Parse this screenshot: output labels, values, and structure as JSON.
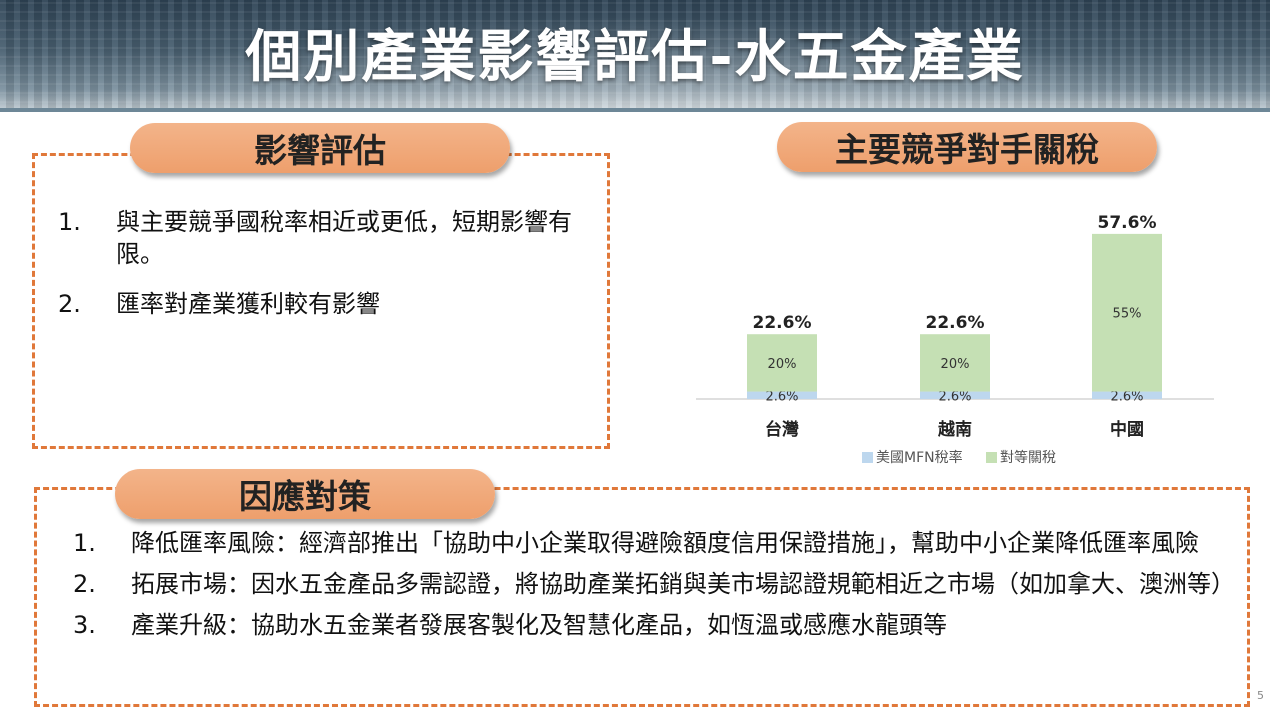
{
  "header": {
    "title": "個別產業影響評估-水五金產業"
  },
  "impact": {
    "heading": "影響評估",
    "items": [
      {
        "num": "1.",
        "text": "與主要競爭國稅率相近或更低，短期影響有限。"
      },
      {
        "num": "2.",
        "text": "匯率對產業獲利較有影響"
      }
    ]
  },
  "chart_section": {
    "heading": "主要競爭對手關稅"
  },
  "chart_data": {
    "type": "bar",
    "stacked": true,
    "categories": [
      "台灣",
      "越南",
      "中國"
    ],
    "series": [
      {
        "name": "美國MFN稅率",
        "values": [
          2.6,
          2.6,
          2.6
        ],
        "labels": [
          "2.6%",
          "2.6%",
          "2.6%"
        ],
        "color": "#bdd7ee"
      },
      {
        "name": "對等關稅",
        "values": [
          20,
          20,
          55
        ],
        "labels": [
          "20%",
          "20%",
          "55%"
        ],
        "color": "#c5e0b4"
      }
    ],
    "totals": [
      "22.6%",
      "22.6%",
      "57.6%"
    ],
    "ylim": [
      0,
      60
    ],
    "legend": "bottom"
  },
  "response": {
    "heading": "因應對策",
    "items": [
      {
        "num": "1.",
        "text": "降低匯率風險：經濟部推出「協助中小企業取得避險額度信用保證措施」，幫助中小企業降低匯率風險"
      },
      {
        "num": "2.",
        "text": "拓展市場：因水五金產品多需認證，將協助產業拓銷與美市場認證規範相近之市場（如加拿大、澳洲等）"
      },
      {
        "num": "3.",
        "text": "產業升級：協助水五金業者發展客製化及智慧化產品，如恆溫或感應水龍頭等"
      }
    ]
  },
  "footer": {
    "page": "5"
  },
  "colors": {
    "accent": "#e0783a",
    "pill": "#f0a676"
  }
}
